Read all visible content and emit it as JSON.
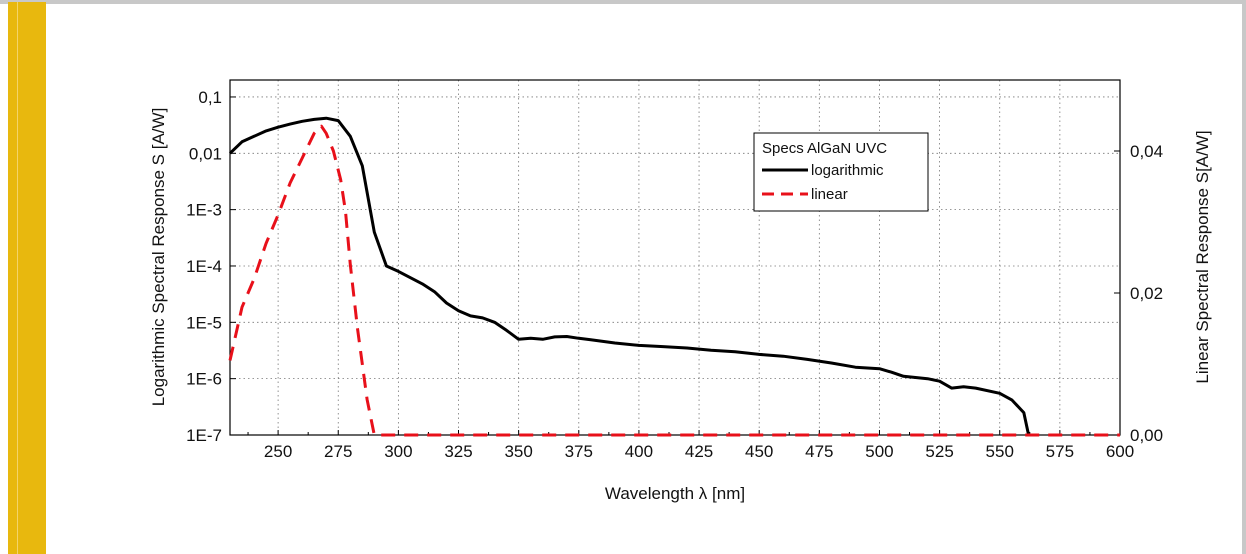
{
  "chart_data": {
    "type": "line",
    "title": "",
    "xlabel": "Wavelength λ [nm]",
    "ylabel_left": "Logarithmic Spectral Response S [A/W]",
    "ylabel_right": "Linear Spectral Response S[A/W]",
    "xlim": [
      230,
      600
    ],
    "ylim_left_log": [
      1e-07,
      0.2
    ],
    "ylim_right": [
      0,
      0.05
    ],
    "x_ticks": [
      250,
      275,
      300,
      325,
      350,
      375,
      400,
      425,
      450,
      475,
      500,
      525,
      550,
      575,
      600
    ],
    "x_tick_labels": [
      "250",
      "275",
      "300",
      "325",
      "350",
      "375",
      "400",
      "425",
      "450",
      "475",
      "500",
      "525",
      "550",
      "575",
      "600"
    ],
    "y_left_ticks": [
      0.1,
      0.01,
      0.001,
      0.0001,
      1e-05,
      1e-06,
      1e-07
    ],
    "y_left_tick_labels": [
      "0,1",
      "0,01",
      "1E-3",
      "1E-4",
      "1E-5",
      "1E-6",
      "1E-7"
    ],
    "y_right_ticks": [
      0.04,
      0.02,
      0.0
    ],
    "y_right_tick_labels": [
      "0,04",
      "0,02",
      "0,00"
    ],
    "grid": true,
    "legend": {
      "title": "Specs AlGaN UVC",
      "placement": "top-right"
    },
    "series": [
      {
        "name": "logarithmic",
        "axis": "left",
        "color": "#000000",
        "style": "solid",
        "x": [
          230,
          235,
          240,
          245,
          250,
          255,
          260,
          265,
          270,
          275,
          280,
          285,
          290,
          295,
          300,
          305,
          310,
          315,
          320,
          325,
          330,
          335,
          340,
          345,
          350,
          355,
          360,
          365,
          370,
          375,
          380,
          390,
          400,
          410,
          420,
          430,
          440,
          450,
          460,
          470,
          480,
          490,
          500,
          505,
          510,
          520,
          525,
          530,
          535,
          540,
          550,
          555,
          560,
          562
        ],
        "y": [
          0.01,
          0.016,
          0.02,
          0.025,
          0.029,
          0.033,
          0.037,
          0.04,
          0.042,
          0.038,
          0.02,
          0.006,
          0.0004,
          0.0001,
          8e-05,
          6.2e-05,
          4.8e-05,
          3.5e-05,
          2.2e-05,
          1.6e-05,
          1.3e-05,
          1.2e-05,
          1e-05,
          7.2e-06,
          5e-06,
          5.2e-06,
          5e-06,
          5.5e-06,
          5.6e-06,
          5.2e-06,
          4.9e-06,
          4.3e-06,
          3.9e-06,
          3.7e-06,
          3.5e-06,
          3.2e-06,
          3e-06,
          2.7e-06,
          2.5e-06,
          2.2e-06,
          1.9e-06,
          1.6e-06,
          1.5e-06,
          1.3e-06,
          1.1e-06,
          1e-06,
          9e-07,
          6.8e-07,
          7.2e-07,
          6.8e-07,
          5.5e-07,
          4.2e-07,
          2.5e-07,
          1e-07
        ]
      },
      {
        "name": "linear",
        "axis": "right",
        "color": "#e8101a",
        "style": "dashed",
        "x": [
          230,
          235,
          240,
          245,
          250,
          255,
          260,
          265,
          268,
          270,
          273,
          276,
          278,
          280,
          283,
          287,
          290,
          300,
          350,
          400,
          450,
          500,
          550,
          600
        ],
        "y": [
          0.0105,
          0.018,
          0.022,
          0.027,
          0.031,
          0.0355,
          0.039,
          0.0425,
          0.0435,
          0.0425,
          0.04,
          0.036,
          0.0315,
          0.024,
          0.015,
          0.005,
          0.0,
          0.0,
          0.0,
          0.0,
          0.0,
          0.0,
          0.0,
          0.0
        ]
      }
    ]
  }
}
